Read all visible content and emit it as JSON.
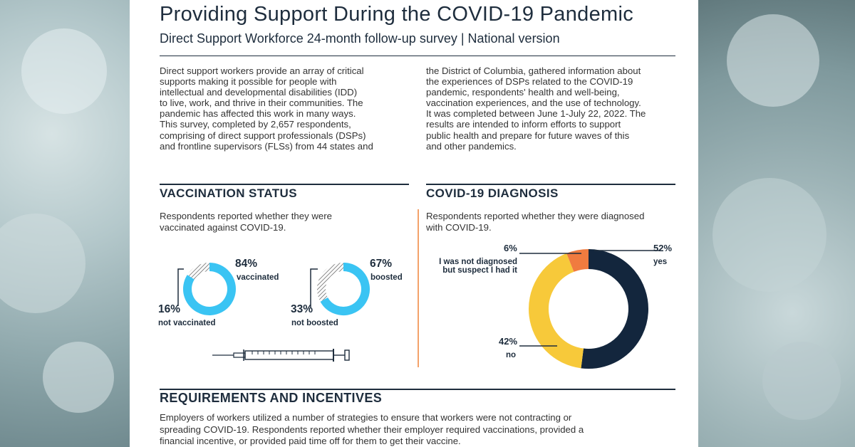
{
  "header": {
    "title": "Providing Support During the COVID-19 Pandemic",
    "subtitle": "Direct Support Workforce 24-month follow-up survey | National version"
  },
  "intro": {
    "left_lines": [
      "Direct support workers provide an array of critical",
      "supports making it possible for people with",
      "intellectual and developmental disabilities (IDD)",
      "to live, work, and thrive in their communities. The",
      "pandemic has affected this work in many ways.",
      "This survey, completed by 2,657 respondents,",
      "comprising of direct support professionals (DSPs)",
      "and frontline supervisors (FLSs) from 44 states and"
    ],
    "right_lines": [
      "the District of Columbia, gathered information about",
      "the experiences of DSPs related to the COVID-19",
      "pandemic, respondents' health and well-being,",
      "vaccination experiences, and the use of technology.",
      "It was completed between June 1-July 22, 2022. The",
      "results are intended to inform efforts to support",
      "public health and prepare for future waves of this",
      "and other pandemics."
    ]
  },
  "vaccination": {
    "heading": "VACCINATION STATUS",
    "description_lines": [
      "Respondents reported whether they were",
      "vaccinated against COVID-19."
    ],
    "vaccinated_pct": "84%",
    "vaccinated_label": "vaccinated",
    "not_vaccinated_pct": "16%",
    "not_vaccinated_label": "not vaccinated",
    "boosted_pct": "67%",
    "boosted_label": "boosted",
    "not_boosted_pct": "33%",
    "not_boosted_label": "not boosted",
    "vaccinated_fraction": 0.84,
    "boosted_fraction": 0.67,
    "syringe_icon": "syringe-icon"
  },
  "diagnosis": {
    "heading": "COVID-19 DIAGNOSIS",
    "description_lines": [
      "Respondents reported whether they were diagnosed",
      "with COVID-19."
    ],
    "yes_pct": "52%",
    "yes_label": "yes",
    "no_pct": "42%",
    "no_label": "no",
    "suspect_pct": "6%",
    "suspect_label_lines": [
      "I was not diagnosed",
      "but suspect I had it"
    ],
    "segments": [
      {
        "name": "yes",
        "value": 52,
        "color": "#13263d"
      },
      {
        "name": "no",
        "value": 42,
        "color": "#f7c93a"
      },
      {
        "name": "suspect",
        "value": 6,
        "color": "#f07b3f"
      }
    ]
  },
  "requirements": {
    "heading": "REQUIREMENTS AND INCENTIVES",
    "description_lines": [
      "Employers of workers utilized a number of strategies to ensure that workers were not contracting or",
      "spreading COVID-19. Respondents reported whether their employer required vaccinations, provided a",
      "financial incentive, or provided paid time off for them to get their vaccine."
    ]
  },
  "colors": {
    "navy": "#1e2d3d",
    "vaccine_blue": "#3ac4f3",
    "accent_orange": "#f4a26a"
  }
}
